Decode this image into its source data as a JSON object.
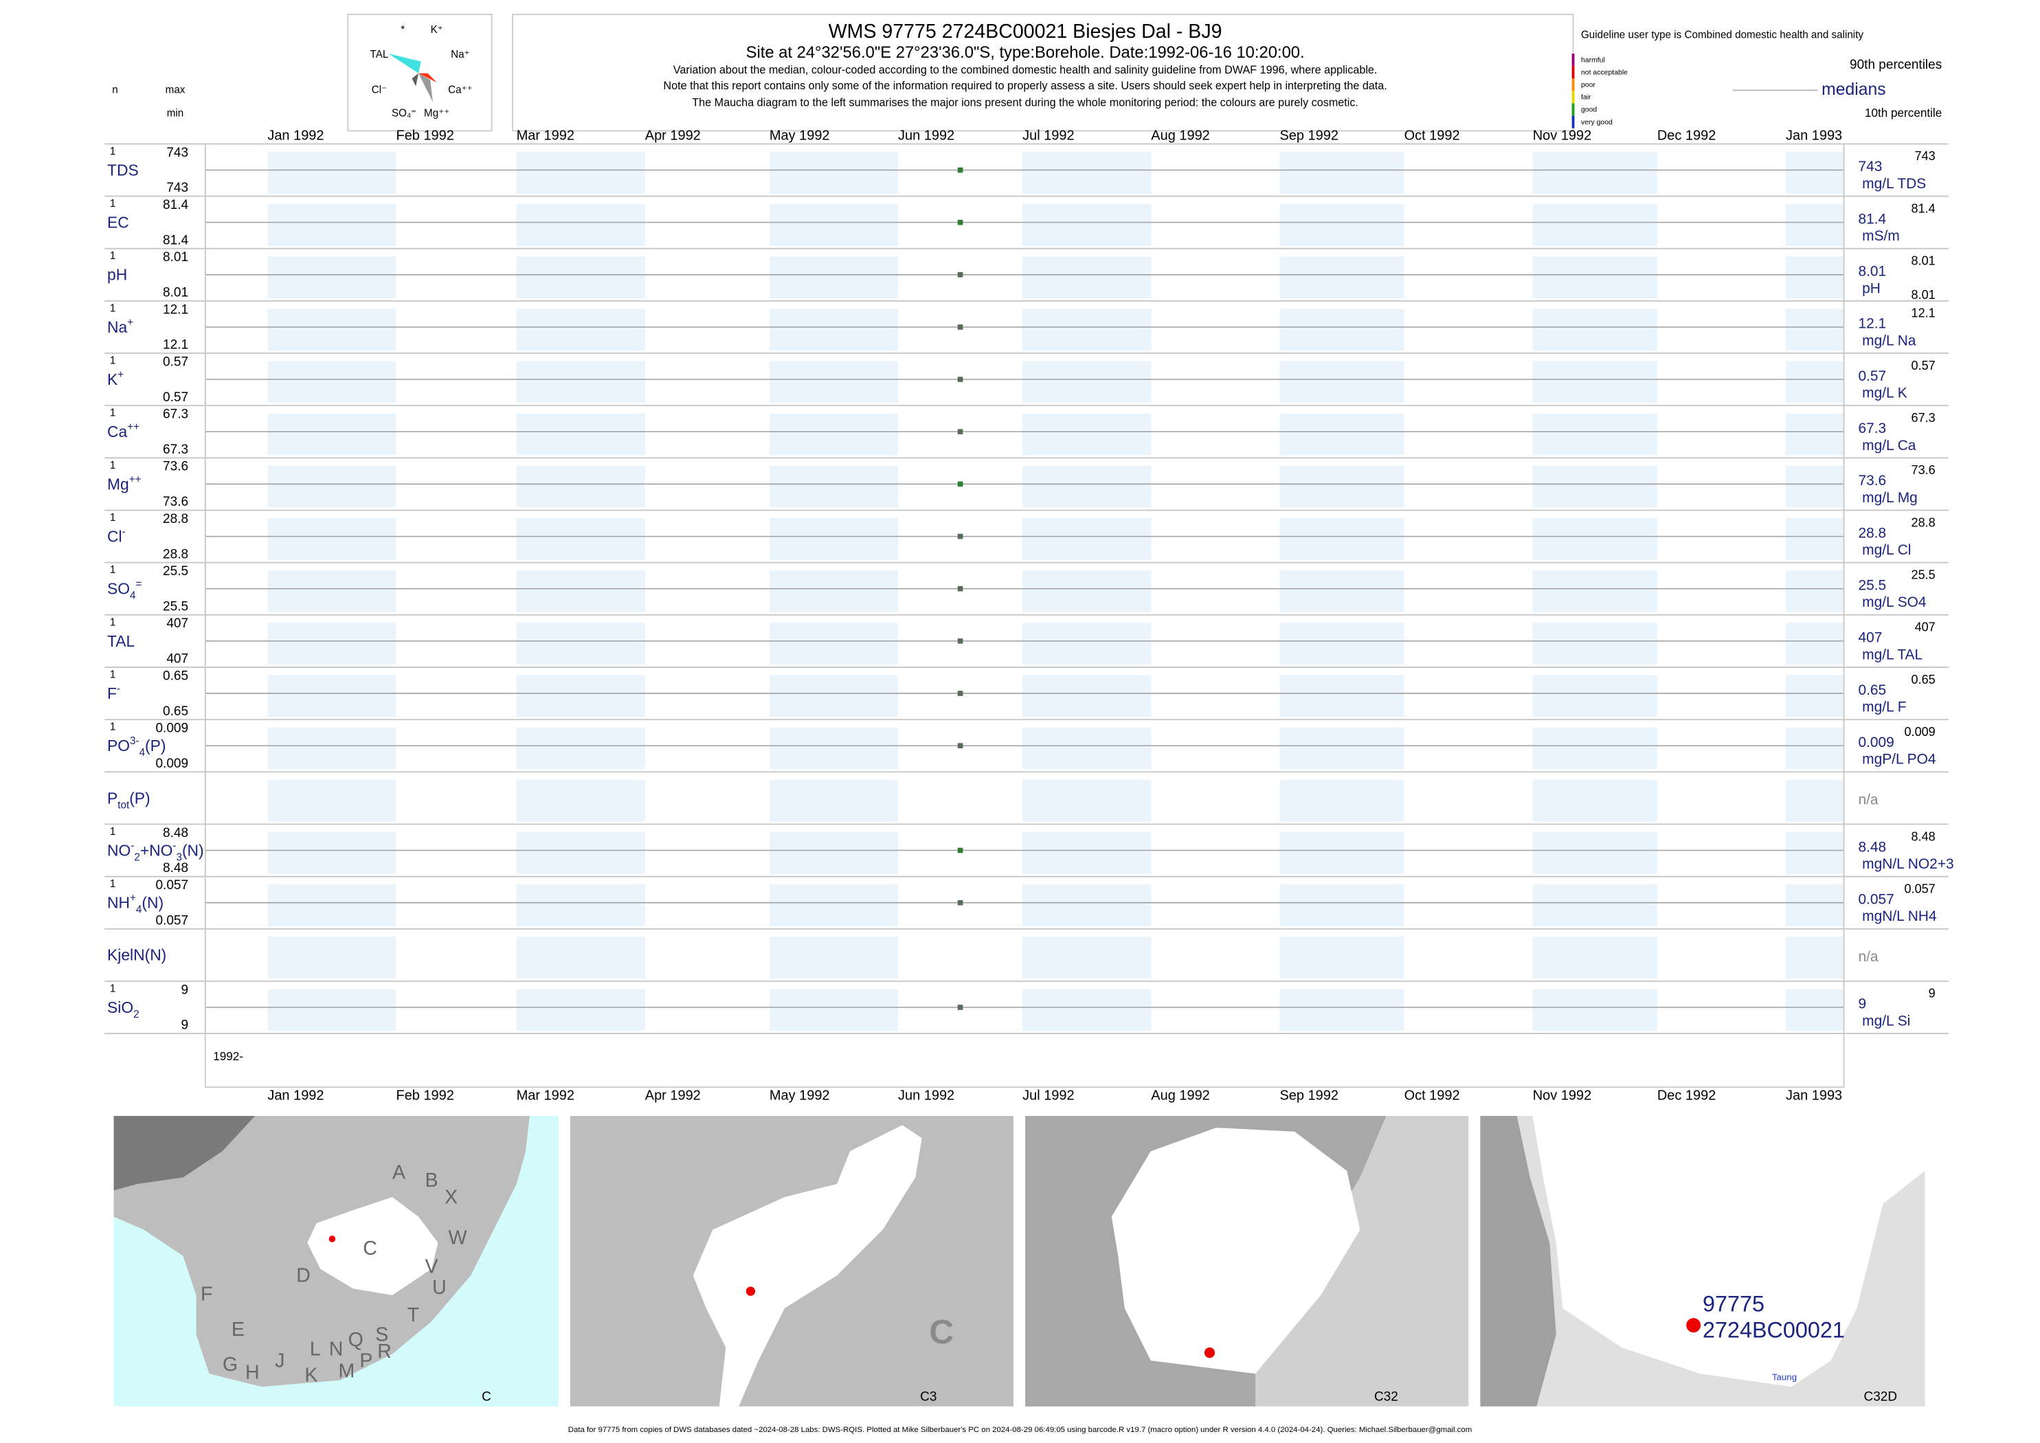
{
  "header": {
    "title": "WMS 97775 2724BC00021 Biesjes Dal - BJ9",
    "site": "Site at 24°32'56.0\"E 27°23'36.0\"S, type:Borehole. Date:",
    "date": "1992-06-16 10:20:00.",
    "notes": [
      "Variation about the median,  colour-coded according to the combined domestic health and salinity guideline from DWAF 1996, where applicable.",
      "Note that this report contains only some of the information required to properly assess a site. Users should seek expert help in interpreting the data.",
      "The Maucha diagram to the left summarises the major ions present during the whole monitoring period: the colours are purely cosmetic."
    ]
  },
  "maucha": [
    "*",
    "K⁺",
    "TAL",
    "Na⁺",
    "Cl⁻",
    "Ca⁺⁺",
    "SO₄⁼",
    "Mg⁺⁺"
  ],
  "legend": {
    "guideline": "Guideline user type is Combined domestic health and salinity",
    "classes": [
      {
        "name": "harmful",
        "color": "#a0007a"
      },
      {
        "name": "not acceptable",
        "color": "#e00000"
      },
      {
        "name": "poor",
        "color": "#ff8c00"
      },
      {
        "name": "fair",
        "color": "#e8d800"
      },
      {
        "name": "good",
        "color": "#20a020"
      },
      {
        "name": "very good",
        "color": "#1030c0"
      }
    ],
    "p90": "90th percentiles",
    "median": "medians",
    "p10": "10th percentile",
    "n": "n",
    "max": "max",
    "min": "min"
  },
  "axis": {
    "months": [
      "Jan 1992",
      "Feb 1992",
      "Mar 1992",
      "Apr 1992",
      "May 1992",
      "Jun 1992",
      "Jul 1992",
      "Aug 1992",
      "Sep 1992",
      "Oct 1992",
      "Nov 1992",
      "Dec 1992",
      "Jan 1993"
    ],
    "xlim": [
      "1991-12-17",
      "1993-01-15"
    ],
    "year_label": "1992-"
  },
  "rows": [
    {
      "label": [
        {
          "t": "TDS"
        }
      ],
      "n": 1,
      "max": 743,
      "min": 743,
      "median": 743,
      "p90": 743,
      "unit": "mg/L TDS",
      "color": "#2e7d32"
    },
    {
      "label": [
        {
          "t": "EC"
        }
      ],
      "n": 1,
      "max": 81.4,
      "min": 81.4,
      "median": 81.4,
      "p90": 81.4,
      "unit": "mS/m",
      "color": "#2e7d32"
    },
    {
      "label": [
        {
          "t": "pH"
        }
      ],
      "n": 1,
      "max": 8.01,
      "min": 8.01,
      "median": 8.01,
      "p90": 8.01,
      "p10": 8.01,
      "unit": "pH",
      "color": "#5a6b5a"
    },
    {
      "label": [
        {
          "t": "Na"
        },
        {
          "t": "+",
          "s": "sup"
        }
      ],
      "n": 1,
      "max": 12.1,
      "min": 12.1,
      "median": 12.1,
      "p90": 12.1,
      "unit": "mg/L Na",
      "color": "#5a6b5a"
    },
    {
      "label": [
        {
          "t": "K"
        },
        {
          "t": "+",
          "s": "sup"
        }
      ],
      "n": 1,
      "max": 0.57,
      "min": 0.57,
      "median": 0.57,
      "p90": 0.57,
      "unit": "mg/L K",
      "color": "#5a6b5a"
    },
    {
      "label": [
        {
          "t": "Ca"
        },
        {
          "t": "++",
          "s": "sup"
        }
      ],
      "n": 1,
      "max": 67.3,
      "min": 67.3,
      "median": 67.3,
      "p90": 67.3,
      "unit": "mg/L Ca",
      "color": "#5a6b5a"
    },
    {
      "label": [
        {
          "t": "Mg"
        },
        {
          "t": "++",
          "s": "sup"
        }
      ],
      "n": 1,
      "max": 73.6,
      "min": 73.6,
      "median": 73.6,
      "p90": 73.6,
      "unit": "mg/L Mg",
      "color": "#2e7d32"
    },
    {
      "label": [
        {
          "t": "Cl"
        },
        {
          "t": "-",
          "s": "sup"
        }
      ],
      "n": 1,
      "max": 28.8,
      "min": 28.8,
      "median": 28.8,
      "p90": 28.8,
      "unit": "mg/L Cl",
      "color": "#5a6b5a"
    },
    {
      "label": [
        {
          "t": "SO"
        },
        {
          "t": "4",
          "s": "sub"
        },
        {
          "t": "=",
          "s": "sup"
        }
      ],
      "n": 1,
      "max": 25.5,
      "min": 25.5,
      "median": 25.5,
      "p90": 25.5,
      "unit": "mg/L SO4",
      "color": "#5a6b5a"
    },
    {
      "label": [
        {
          "t": "TAL"
        }
      ],
      "n": 1,
      "max": 407,
      "min": 407,
      "median": 407,
      "p90": 407,
      "unit": "mg/L TAL",
      "color": "#5a6b5a"
    },
    {
      "label": [
        {
          "t": "F"
        },
        {
          "t": "-",
          "s": "sup"
        }
      ],
      "n": 1,
      "max": 0.65,
      "min": 0.65,
      "median": 0.65,
      "p90": 0.65,
      "unit": "mg/L F",
      "color": "#5a6b5a"
    },
    {
      "label": [
        {
          "t": "PO"
        },
        {
          "t": "3-",
          "s": "sup"
        },
        {
          "t": "4",
          "s": "sub"
        },
        {
          "t": "(P)"
        }
      ],
      "n": 1,
      "max": 0.009,
      "min": 0.009,
      "median": 0.009,
      "p90": 0.009,
      "unit": "mgP/L PO4",
      "color": "#5a6b5a"
    },
    {
      "label": [
        {
          "t": "P"
        },
        {
          "t": "tot",
          "s": "sub"
        },
        {
          "t": "(P)"
        }
      ],
      "na": "n/a"
    },
    {
      "label": [
        {
          "t": "NO"
        },
        {
          "t": "-",
          "s": "sup"
        },
        {
          "t": "2",
          "s": "sub"
        },
        {
          "t": "+NO"
        },
        {
          "t": "-",
          "s": "sup"
        },
        {
          "t": "3",
          "s": "sub"
        },
        {
          "t": "(N)"
        }
      ],
      "n": 1,
      "max": 8.48,
      "min": 8.48,
      "median": 8.48,
      "p90": 8.48,
      "unit": "mgN/L NO2+3",
      "color": "#2e7d32"
    },
    {
      "label": [
        {
          "t": "NH"
        },
        {
          "t": "+",
          "s": "sup"
        },
        {
          "t": "4",
          "s": "sub"
        },
        {
          "t": "(N)"
        }
      ],
      "n": 1,
      "max": 0.057,
      "min": 0.057,
      "median": 0.057,
      "p90": 0.057,
      "unit": "mgN/L NH4",
      "color": "#5a6b5a"
    },
    {
      "label": [
        {
          "t": "KjelN(N)"
        }
      ],
      "na": "n/a"
    },
    {
      "label": [
        {
          "t": "SiO"
        },
        {
          "t": "2",
          "s": "sub"
        }
      ],
      "n": 1,
      "max": 9,
      "min": 9,
      "median": 9,
      "p90": 9,
      "unit": "mg/L Si",
      "color": "#5a6b5a"
    }
  ],
  "maps": {
    "letters": [
      "A",
      "B",
      "X",
      "W",
      "C",
      "D",
      "V",
      "U",
      "F",
      "T",
      "E",
      "L",
      "N",
      "Q",
      "S",
      "G",
      "H",
      "J",
      "K",
      "M",
      "P",
      "R"
    ],
    "big": "C",
    "captions": [
      "C",
      "C3",
      "C32",
      "C32D"
    ],
    "site": [
      "97775",
      "2724BC00021"
    ],
    "town": "Taung"
  },
  "footer": "Data for 97775 from copies of DWS databases dated ~2024-08-28 Labs: DWS-RQIS. Plotted at Mike Silberbauer's PC on 2024-08-29 06:49:05 using barcode.R v19.7 (macro option) under R version 4.4.0 (2024-04-24). Queries: Michael.Silberbauer@gmail.com"
}
